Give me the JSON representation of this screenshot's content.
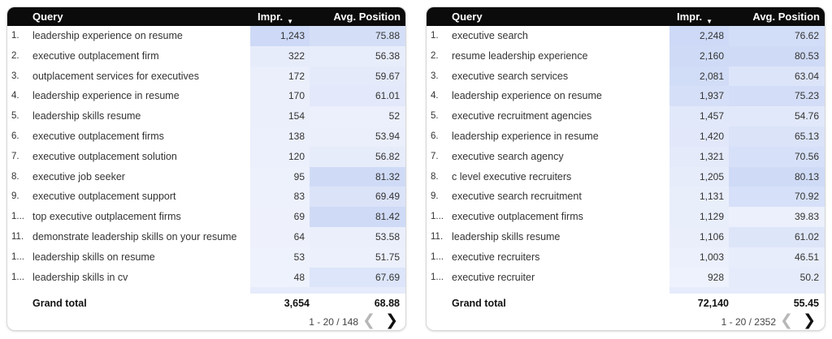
{
  "colors": {
    "header_bg": "#0b0b0b",
    "heat_low": "#f4f6fd",
    "heat_high": "#cdd9f6"
  },
  "tables": [
    {
      "columns": {
        "query": "Query",
        "impr": "Impr.",
        "sort_icon": "▼",
        "avg": "Avg. Position"
      },
      "rows": [
        {
          "idx": "1.",
          "query": "leadership experience on resume",
          "impr": "1,243",
          "avg": "75.88"
        },
        {
          "idx": "2.",
          "query": "executive outplacement firm",
          "impr": "322",
          "avg": "56.38"
        },
        {
          "idx": "3.",
          "query": "outplacement services for executives",
          "impr": "172",
          "avg": "59.67"
        },
        {
          "idx": "4.",
          "query": "leadership experience in resume",
          "impr": "170",
          "avg": "61.01"
        },
        {
          "idx": "5.",
          "query": "leadership skills resume",
          "impr": "154",
          "avg": "52"
        },
        {
          "idx": "6.",
          "query": "executive outplacement firms",
          "impr": "138",
          "avg": "53.94"
        },
        {
          "idx": "7.",
          "query": "executive outplacement solution",
          "impr": "120",
          "avg": "56.82"
        },
        {
          "idx": "8.",
          "query": "executive job seeker",
          "impr": "95",
          "avg": "81.32"
        },
        {
          "idx": "9.",
          "query": "executive outplacement support",
          "impr": "83",
          "avg": "69.49"
        },
        {
          "idx": "1...",
          "query": "top executive outplacement firms",
          "impr": "69",
          "avg": "81.42"
        },
        {
          "idx": "11.",
          "query": "demonstrate leadership skills on your resume",
          "impr": "64",
          "avg": "53.58"
        },
        {
          "idx": "1...",
          "query": "leadership skills on resume",
          "impr": "53",
          "avg": "51.75"
        },
        {
          "idx": "1...",
          "query": "leadership skills in cv",
          "impr": "48",
          "avg": "67.69"
        }
      ],
      "total": {
        "label": "Grand total",
        "impr": "3,654",
        "avg": "68.88"
      },
      "pager": {
        "range": "1 - 20 / 148",
        "prev_icon": "❮",
        "next_icon": "❯"
      }
    },
    {
      "columns": {
        "query": "Query",
        "impr": "Impr.",
        "sort_icon": "▼",
        "avg": "Avg. Position"
      },
      "rows": [
        {
          "idx": "1.",
          "query": "executive search",
          "impr": "2,248",
          "avg": "76.62"
        },
        {
          "idx": "2.",
          "query": "resume leadership experience",
          "impr": "2,160",
          "avg": "80.53"
        },
        {
          "idx": "3.",
          "query": "executive search services",
          "impr": "2,081",
          "avg": "63.04"
        },
        {
          "idx": "4.",
          "query": "leadership experience on resume",
          "impr": "1,937",
          "avg": "75.23"
        },
        {
          "idx": "5.",
          "query": "executive recruitment agencies",
          "impr": "1,457",
          "avg": "54.76"
        },
        {
          "idx": "6.",
          "query": "leadership experience in resume",
          "impr": "1,420",
          "avg": "65.13"
        },
        {
          "idx": "7.",
          "query": "executive search agency",
          "impr": "1,321",
          "avg": "70.56"
        },
        {
          "idx": "8.",
          "query": "c level executive recruiters",
          "impr": "1,205",
          "avg": "80.13"
        },
        {
          "idx": "9.",
          "query": "executive search recruitment",
          "impr": "1,131",
          "avg": "70.92"
        },
        {
          "idx": "1...",
          "query": "executive outplacement firms",
          "impr": "1,129",
          "avg": "39.83"
        },
        {
          "idx": "11.",
          "query": "leadership skills resume",
          "impr": "1,106",
          "avg": "61.02"
        },
        {
          "idx": "1...",
          "query": "executive recruiters",
          "impr": "1,003",
          "avg": "46.51"
        },
        {
          "idx": "1...",
          "query": "executive recruiter",
          "impr": "928",
          "avg": "50.2"
        }
      ],
      "total": {
        "label": "Grand total",
        "impr": "72,140",
        "avg": "55.45"
      },
      "pager": {
        "range": "1 - 20 / 2352",
        "prev_icon": "❮",
        "next_icon": "❯"
      }
    }
  ]
}
